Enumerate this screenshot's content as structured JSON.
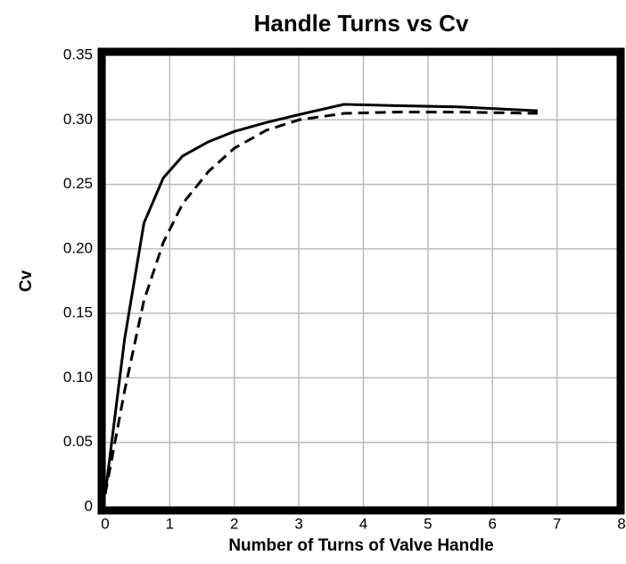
{
  "chart_data": {
    "type": "line",
    "title": "Handle Turns vs Cv",
    "xlabel": "Number of Turns of Valve Handle",
    "ylabel": "Cv",
    "x": [
      0,
      0.3,
      0.6,
      0.9,
      1.2,
      1.6,
      2,
      2.5,
      3,
      3.7,
      4.5,
      5.5,
      6.7
    ],
    "series": [
      {
        "color": "#000000",
        "style": "solid",
        "values": [
          0.01,
          0.13,
          0.22,
          0.255,
          0.272,
          0.283,
          0.291,
          0.298,
          0.304,
          0.312,
          0.311,
          0.31,
          0.307
        ]
      },
      {
        "color": "#000000",
        "style": "dashed",
        "values": [
          0.01,
          0.09,
          0.16,
          0.205,
          0.235,
          0.26,
          0.278,
          0.292,
          0.3,
          0.305,
          0.306,
          0.306,
          0.305
        ]
      }
    ],
    "xlim": [
      0,
      8
    ],
    "xticks": [
      0,
      1,
      2,
      3,
      4,
      5,
      6,
      7,
      8
    ],
    "ylim": [
      0,
      0.35
    ],
    "yticks": [
      0,
      0.05,
      {
        "value": 0.1,
        "label": "0.10"
      },
      0.15,
      {
        "value": 0.2,
        "label": "0.20"
      },
      0.25,
      {
        "value": 0.3,
        "label": "0.30"
      },
      0.35
    ],
    "grid": true
  }
}
